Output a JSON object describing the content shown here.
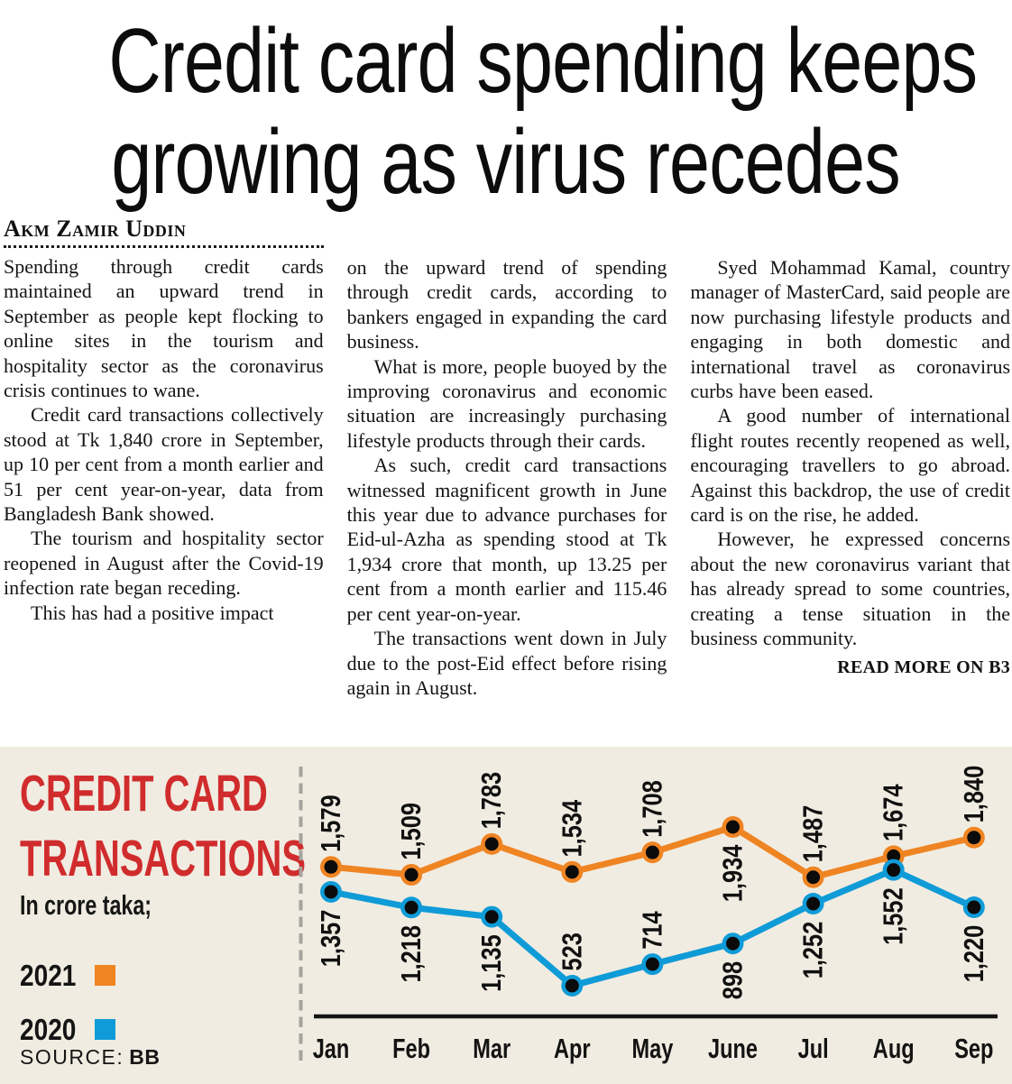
{
  "headline": {
    "line1": "Credit card spending keeps",
    "line2": "growing as virus recedes"
  },
  "byline": "Akm Zamir Uddin",
  "article": {
    "columns": [
      {
        "paragraphs": [
          "Spending through credit cards maintained an upward trend in September as people kept flocking to online sites in the tourism and hospitality sector as the coronavirus crisis continues to wane.",
          "Credit card transactions collectively stood at Tk 1,840 crore in September, up 10 per cent from a month earlier and 51 per cent year-on-year, data from Bangladesh Bank showed.",
          "The tourism and hospitality sector reopened in August after the Covid-19 infection rate began receding.",
          "This has had a positive impact"
        ]
      },
      {
        "paragraphs": [
          "on the upward trend of spending through credit cards, according to bankers engaged in expanding the card business.",
          "What is more, people buoyed by the improving coronavirus and economic situation are increasingly purchasing lifestyle products through their cards.",
          "As such, credit card transactions witnessed magnificent growth in June this year due to advance purchases for Eid-ul-Azha as spending stood at Tk 1,934 crore that month, up 13.25 per cent from a month earlier and 115.46 per cent year-on-year.",
          "The transactions went down in July due to the post-Eid effect before rising again in August."
        ]
      },
      {
        "paragraphs": [
          "Syed Mohammad Kamal, country manager of MasterCard, said people are now purchasing lifestyle products and engaging in both domestic and international travel as coronavirus curbs have been eased.",
          "A good number of international flight routes recently reopened as well, encouraging travellers to go abroad. Against this backdrop, the use of credit card is on the rise, he added.",
          "However, he expressed concerns about the new coronavirus variant that has already spread to some countries, creating a tense situation in the business community."
        ],
        "read_more": "READ MORE ON B3"
      }
    ]
  },
  "chart": {
    "title_line1": "CREDIT CARD",
    "title_line2": "TRANSACTIONS",
    "subtitle": "In crore taka;",
    "source_label": "SOURCE:",
    "source_value": "BB",
    "background": "#f0ece1",
    "title_color": "#d02c2d"
  },
  "chart_data": {
    "type": "line",
    "title": "CREDIT CARD TRANSACTIONS",
    "ylabel": "In crore taka",
    "categories": [
      "Jan",
      "Feb",
      "Mar",
      "Apr",
      "May",
      "June",
      "Jul",
      "Aug",
      "Sep"
    ],
    "series": [
      {
        "name": "2021",
        "color": "#ef8423",
        "values": [
          1579,
          1509,
          1783,
          1534,
          1708,
          1934,
          1487,
          1674,
          1840
        ],
        "label_side": [
          "above",
          "above",
          "above",
          "above",
          "above",
          "below",
          "above",
          "above",
          "above"
        ]
      },
      {
        "name": "2020",
        "color": "#0f9bd7",
        "values": [
          1357,
          1218,
          1135,
          523,
          714,
          898,
          1252,
          1552,
          1220
        ],
        "label_side": [
          "below",
          "below",
          "below",
          "above",
          "above",
          "below",
          "below",
          "below",
          "below"
        ]
      }
    ],
    "ylim": [
      440,
      2000
    ],
    "grid": false,
    "legend_position": "left",
    "marker": "black-dot-colored-ring",
    "value_label_rotation": -90
  }
}
